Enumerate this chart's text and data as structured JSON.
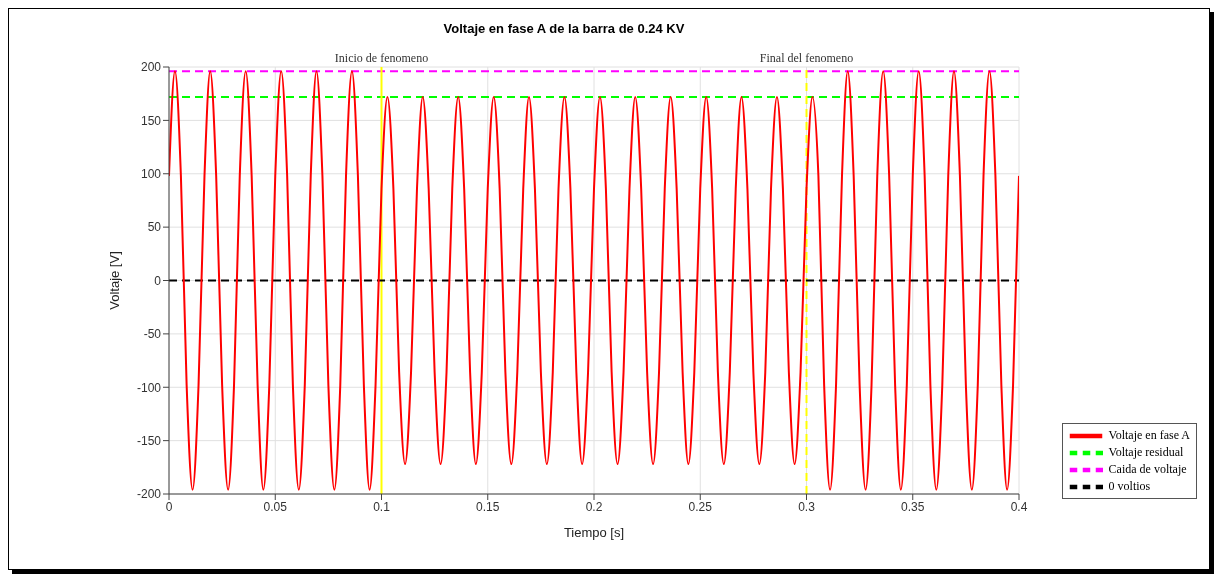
{
  "chart_data": {
    "type": "line",
    "title": "Voltaje en fase A de la barra de 0.24 KV",
    "xlabel": "Tiempo [s]",
    "ylabel": "Voltaje [V]",
    "x": [
      0,
      0.0028,
      0.0056,
      0.0083,
      0.0111,
      0.0139,
      0.0167,
      0.0194,
      0.0222,
      0.025,
      0.0278,
      0.0306,
      0.0333,
      0.0361,
      0.0389,
      0.0417,
      0.0444,
      0.0472,
      0.05,
      0.0528,
      0.0556,
      0.0583,
      0.0611,
      0.0639,
      0.0667,
      0.0694,
      0.0722,
      0.075,
      0.0778,
      0.0806,
      0.0833,
      0.0861,
      0.0889,
      0.0917,
      0.0944,
      0.0972,
      0.1,
      0.1028,
      0.1056,
      0.1083,
      0.1111,
      0.1139,
      0.1167,
      0.1194,
      0.1222,
      0.125,
      0.1278,
      0.1306,
      0.1333,
      0.1361,
      0.1389,
      0.1417,
      0.1444,
      0.1472,
      0.15,
      0.1528,
      0.1556,
      0.1583,
      0.1611,
      0.1639,
      0.1667,
      0.1694,
      0.1722,
      0.175,
      0.1778,
      0.1806,
      0.1833,
      0.1861,
      0.1889,
      0.1917,
      0.1944,
      0.1972,
      0.2,
      0.2028,
      0.2056,
      0.2083,
      0.2111,
      0.2139,
      0.2167,
      0.2194,
      0.2222,
      0.225,
      0.2278,
      0.2306,
      0.2333,
      0.2361,
      0.2389,
      0.2417,
      0.2444,
      0.2472,
      0.25,
      0.2528,
      0.2556,
      0.2583,
      0.2611,
      0.2639,
      0.2667,
      0.2694,
      0.2722,
      0.275,
      0.2778,
      0.2806,
      0.2833,
      0.2861,
      0.2889,
      0.2917,
      0.2944,
      0.2972,
      0.3,
      0.3028,
      0.3056,
      0.3083,
      0.3111,
      0.3139,
      0.3167,
      0.3194,
      0.3222,
      0.325,
      0.3278,
      0.3306,
      0.3333,
      0.3361,
      0.3389,
      0.3417,
      0.3444,
      0.3472,
      0.35,
      0.3528,
      0.3556,
      0.3583,
      0.3611,
      0.3639,
      0.3667,
      0.3694,
      0.3722,
      0.375,
      0.3778,
      0.3806,
      0.3833,
      0.3861,
      0.3889,
      0.3917,
      0.3944,
      0.3972,
      0.4
    ],
    "series": [
      {
        "name": "Voltaje en fase A",
        "color": "#ff0000",
        "values": [
          98,
          196,
          98,
          -98,
          -196,
          -98,
          98,
          196,
          98,
          -98,
          -196,
          -98,
          98,
          196,
          98,
          -98,
          -196,
          -98,
          98,
          196,
          98,
          -98,
          -196,
          -98,
          98,
          196,
          98,
          -98,
          -196,
          -98,
          98,
          196,
          98,
          -98,
          -196,
          -98,
          86,
          172,
          86,
          -86,
          -172,
          -86,
          86,
          172,
          86,
          -86,
          -172,
          -86,
          86,
          172,
          86,
          -86,
          -172,
          -86,
          86,
          172,
          86,
          -86,
          -172,
          -86,
          86,
          172,
          86,
          -86,
          -172,
          -86,
          86,
          172,
          86,
          -86,
          -172,
          -86,
          86,
          172,
          86,
          -86,
          -172,
          -86,
          86,
          172,
          86,
          -86,
          -172,
          -86,
          86,
          172,
          86,
          -86,
          -172,
          -86,
          86,
          172,
          86,
          -86,
          -172,
          -86,
          86,
          172,
          86,
          -86,
          -172,
          -86,
          86,
          172,
          86,
          -86,
          -172,
          -86,
          86,
          172,
          98,
          -98,
          -196,
          -98,
          98,
          196,
          98,
          -98,
          -196,
          -98,
          98,
          196,
          98,
          -98,
          -196,
          -98,
          98,
          196,
          98,
          -98,
          -196,
          -98,
          98,
          196,
          98,
          -98,
          -196,
          -98,
          98,
          196,
          98,
          -98,
          -196,
          -98,
          98
        ]
      }
    ],
    "ref_lines": [
      {
        "axis": "y",
        "value": 172,
        "label": "Voltaje residual",
        "color": "#00ff00",
        "line_style": "dashed"
      },
      {
        "axis": "y",
        "value": 196,
        "label": "Caida de voltaje",
        "color": "#ff00ff",
        "line_style": "dashed"
      },
      {
        "axis": "x",
        "value": 0.1,
        "label": "Inicio de fenomeno",
        "color": "#ffff00",
        "line_style": "solid"
      },
      {
        "axis": "x",
        "value": 0.3,
        "label": "Final del fenomeno",
        "color": "#ffff00",
        "line_style": "dashed"
      },
      {
        "axis": "y",
        "value": 0,
        "label": "0 voltios",
        "color": "#000000",
        "line_style": "dashed"
      }
    ],
    "xlim": [
      0,
      0.4
    ],
    "xticks": [
      0,
      0.05,
      0.1,
      0.15,
      0.2,
      0.25,
      0.3,
      0.35,
      0.4
    ],
    "ylim": [
      -200,
      200
    ],
    "yticks": [
      -200,
      -150,
      -100,
      -50,
      0,
      50,
      100,
      150,
      200
    ],
    "grid": true,
    "legend": "right",
    "marker": "none",
    "line_style": "solid"
  }
}
